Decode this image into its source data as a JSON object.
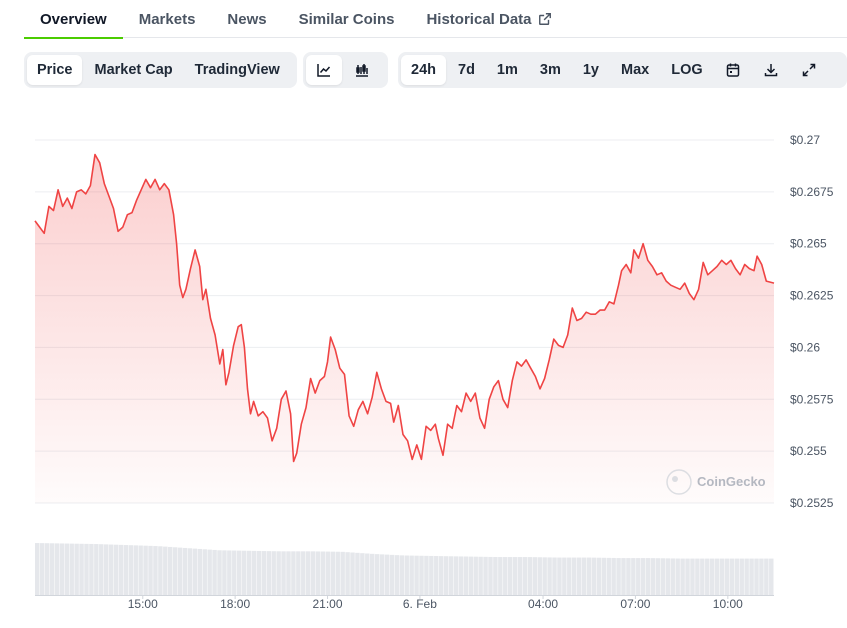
{
  "tabs": {
    "overview": "Overview",
    "markets": "Markets",
    "news": "News",
    "similar": "Similar Coins",
    "historical": "Historical Data"
  },
  "toolbar": {
    "price": "Price",
    "market_cap": "Market Cap",
    "trading_view": "TradingView",
    "line_chart_icon": "line-chart-icon",
    "candlestick_icon": "candlestick-icon",
    "ranges": [
      "24h",
      "7d",
      "1m",
      "3m",
      "1y",
      "Max"
    ],
    "active_range": "24h",
    "log": "LOG",
    "calendar_icon": "calendar-icon",
    "download_icon": "download-icon",
    "fullscreen_icon": "expand-icon"
  },
  "watermark": "CoinGecko",
  "colors": {
    "line": "#ef4444",
    "accent": "#4bcc00",
    "volume": "#e5e7eb"
  },
  "chart_data": {
    "type": "area",
    "x_tick_labels": [
      "15:00",
      "18:00",
      "21:00",
      "6. Feb",
      "04:00",
      "07:00",
      "10:00"
    ],
    "y_tick_labels": [
      "$0.27",
      "$0.2675",
      "$0.265",
      "$0.2625",
      "$0.26",
      "$0.2575",
      "$0.255",
      "$0.2525"
    ],
    "y_ticks": [
      0.27,
      0.2675,
      0.265,
      0.2625,
      0.26,
      0.2575,
      0.255,
      0.2525
    ],
    "ylim": [
      0.2525,
      0.27
    ],
    "x_start_hours": 11.5,
    "x_end_hours": 35.5,
    "x_tick_hours": [
      15,
      18,
      21,
      24,
      28,
      31,
      34
    ],
    "grid": true,
    "series": [
      {
        "values": [
          [
            11.5,
            0.2661
          ],
          [
            11.65,
            0.2658
          ],
          [
            11.8,
            0.2655
          ],
          [
            11.95,
            0.2668
          ],
          [
            12.1,
            0.2666
          ],
          [
            12.25,
            0.2676
          ],
          [
            12.4,
            0.2668
          ],
          [
            12.55,
            0.2672
          ],
          [
            12.7,
            0.2667
          ],
          [
            12.85,
            0.2675
          ],
          [
            13.0,
            0.2676
          ],
          [
            13.15,
            0.2674
          ],
          [
            13.3,
            0.2678
          ],
          [
            13.45,
            0.2693
          ],
          [
            13.6,
            0.2689
          ],
          [
            13.75,
            0.2679
          ],
          [
            13.9,
            0.2673
          ],
          [
            14.05,
            0.2667
          ],
          [
            14.2,
            0.2656
          ],
          [
            14.35,
            0.2658
          ],
          [
            14.5,
            0.2664
          ],
          [
            14.65,
            0.2665
          ],
          [
            14.8,
            0.2671
          ],
          [
            14.95,
            0.2676
          ],
          [
            15.1,
            0.2681
          ],
          [
            15.25,
            0.2677
          ],
          [
            15.4,
            0.2681
          ],
          [
            15.55,
            0.2676
          ],
          [
            15.7,
            0.2679
          ],
          [
            15.85,
            0.2676
          ],
          [
            16.0,
            0.2664
          ],
          [
            16.1,
            0.265
          ],
          [
            16.2,
            0.263
          ],
          [
            16.3,
            0.2624
          ],
          [
            16.4,
            0.2628
          ],
          [
            16.55,
            0.2638
          ],
          [
            16.7,
            0.2647
          ],
          [
            16.85,
            0.2639
          ],
          [
            16.95,
            0.2623
          ],
          [
            17.05,
            0.2628
          ],
          [
            17.2,
            0.2614
          ],
          [
            17.35,
            0.2606
          ],
          [
            17.5,
            0.2592
          ],
          [
            17.6,
            0.2599
          ],
          [
            17.7,
            0.2582
          ],
          [
            17.8,
            0.2588
          ],
          [
            17.95,
            0.2601
          ],
          [
            18.1,
            0.261
          ],
          [
            18.2,
            0.2611
          ],
          [
            18.3,
            0.26
          ],
          [
            18.4,
            0.258
          ],
          [
            18.5,
            0.2568
          ],
          [
            18.6,
            0.2574
          ],
          [
            18.75,
            0.2567
          ],
          [
            18.9,
            0.2569
          ],
          [
            19.05,
            0.2566
          ],
          [
            19.2,
            0.2555
          ],
          [
            19.35,
            0.2561
          ],
          [
            19.5,
            0.2575
          ],
          [
            19.65,
            0.2579
          ],
          [
            19.8,
            0.2568
          ],
          [
            19.9,
            0.2545
          ],
          [
            20.0,
            0.2549
          ],
          [
            20.15,
            0.2563
          ],
          [
            20.3,
            0.2571
          ],
          [
            20.45,
            0.2585
          ],
          [
            20.6,
            0.2578
          ],
          [
            20.75,
            0.2584
          ],
          [
            20.9,
            0.2586
          ],
          [
            21.0,
            0.2593
          ],
          [
            21.1,
            0.2605
          ],
          [
            21.25,
            0.2599
          ],
          [
            21.4,
            0.259
          ],
          [
            21.55,
            0.2587
          ],
          [
            21.7,
            0.2567
          ],
          [
            21.85,
            0.2562
          ],
          [
            22.0,
            0.257
          ],
          [
            22.15,
            0.2574
          ],
          [
            22.3,
            0.2568
          ],
          [
            22.45,
            0.2576
          ],
          [
            22.6,
            0.2588
          ],
          [
            22.75,
            0.258
          ],
          [
            22.9,
            0.2574
          ],
          [
            23.05,
            0.2573
          ],
          [
            23.15,
            0.2564
          ],
          [
            23.3,
            0.2572
          ],
          [
            23.45,
            0.2558
          ],
          [
            23.6,
            0.2555
          ],
          [
            23.75,
            0.2546
          ],
          [
            23.9,
            0.2553
          ],
          [
            24.05,
            0.2546
          ],
          [
            24.2,
            0.2562
          ],
          [
            24.35,
            0.256
          ],
          [
            24.5,
            0.2563
          ],
          [
            24.6,
            0.2556
          ],
          [
            24.75,
            0.2548
          ],
          [
            24.9,
            0.2563
          ],
          [
            25.05,
            0.2561
          ],
          [
            25.2,
            0.2572
          ],
          [
            25.35,
            0.2569
          ],
          [
            25.5,
            0.2578
          ],
          [
            25.65,
            0.2574
          ],
          [
            25.8,
            0.2578
          ],
          [
            25.95,
            0.2566
          ],
          [
            26.1,
            0.2561
          ],
          [
            26.25,
            0.2575
          ],
          [
            26.4,
            0.2581
          ],
          [
            26.55,
            0.2584
          ],
          [
            26.7,
            0.2575
          ],
          [
            26.85,
            0.2571
          ],
          [
            27.0,
            0.2584
          ],
          [
            27.15,
            0.2593
          ],
          [
            27.3,
            0.2591
          ],
          [
            27.45,
            0.2594
          ],
          [
            27.6,
            0.259
          ],
          [
            27.75,
            0.2586
          ],
          [
            27.9,
            0.258
          ],
          [
            28.05,
            0.2585
          ],
          [
            28.2,
            0.2594
          ],
          [
            28.35,
            0.2604
          ],
          [
            28.5,
            0.2601
          ],
          [
            28.65,
            0.26
          ],
          [
            28.8,
            0.2606
          ],
          [
            28.95,
            0.2619
          ],
          [
            29.1,
            0.2613
          ],
          [
            29.25,
            0.2614
          ],
          [
            29.4,
            0.2617
          ],
          [
            29.55,
            0.2616
          ],
          [
            29.7,
            0.2616
          ],
          [
            29.85,
            0.2618
          ],
          [
            30.0,
            0.2618
          ],
          [
            30.15,
            0.2622
          ],
          [
            30.3,
            0.2621
          ],
          [
            30.45,
            0.263
          ],
          [
            30.55,
            0.2637
          ],
          [
            30.7,
            0.264
          ],
          [
            30.85,
            0.2636
          ],
          [
            30.95,
            0.2647
          ],
          [
            31.1,
            0.2643
          ],
          [
            31.25,
            0.265
          ],
          [
            31.4,
            0.2642
          ],
          [
            31.55,
            0.2639
          ],
          [
            31.7,
            0.2635
          ],
          [
            31.85,
            0.2636
          ],
          [
            32.0,
            0.2632
          ],
          [
            32.15,
            0.263
          ],
          [
            32.3,
            0.2629
          ],
          [
            32.45,
            0.2628
          ],
          [
            32.6,
            0.2631
          ],
          [
            32.75,
            0.2626
          ],
          [
            32.9,
            0.2623
          ],
          [
            33.05,
            0.2628
          ],
          [
            33.2,
            0.2641
          ],
          [
            33.35,
            0.2635
          ],
          [
            33.5,
            0.2637
          ],
          [
            33.65,
            0.2639
          ],
          [
            33.8,
            0.2642
          ],
          [
            33.95,
            0.264
          ],
          [
            34.1,
            0.2642
          ],
          [
            34.25,
            0.2638
          ],
          [
            34.4,
            0.2635
          ],
          [
            34.55,
            0.264
          ],
          [
            34.7,
            0.2638
          ],
          [
            34.85,
            0.2637
          ],
          [
            34.95,
            0.2644
          ],
          [
            35.1,
            0.264
          ],
          [
            35.25,
            0.2632
          ],
          [
            35.5,
            0.2631
          ]
        ]
      }
    ],
    "volume": [
      [
        11.5,
        1.0
      ],
      [
        12.5,
        0.99
      ],
      [
        13.5,
        0.98
      ],
      [
        14.5,
        0.96
      ],
      [
        15.5,
        0.94
      ],
      [
        16.5,
        0.9
      ],
      [
        17.5,
        0.86
      ],
      [
        18.5,
        0.85
      ],
      [
        19.5,
        0.84
      ],
      [
        20.5,
        0.84
      ],
      [
        21.5,
        0.83
      ],
      [
        22.5,
        0.79
      ],
      [
        23.5,
        0.76
      ],
      [
        24.5,
        0.75
      ],
      [
        25.5,
        0.74
      ],
      [
        26.5,
        0.73
      ],
      [
        27.5,
        0.73
      ],
      [
        28.5,
        0.72
      ],
      [
        29.5,
        0.72
      ],
      [
        30.5,
        0.71
      ],
      [
        31.5,
        0.71
      ],
      [
        32.5,
        0.7
      ],
      [
        33.5,
        0.7
      ],
      [
        34.5,
        0.7
      ],
      [
        35.5,
        0.7
      ]
    ]
  }
}
